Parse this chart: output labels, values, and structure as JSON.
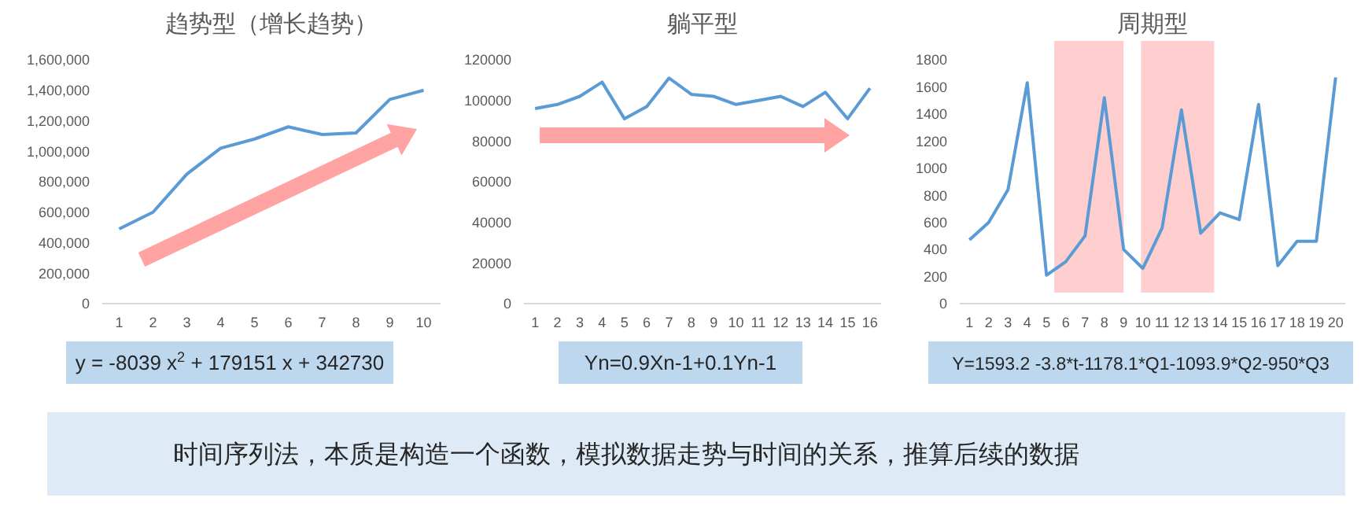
{
  "chart_data": [
    {
      "type": "line",
      "title": "趋势型（增长趋势）",
      "x": [
        1,
        2,
        3,
        4,
        5,
        6,
        7,
        8,
        9,
        10
      ],
      "xlim": [
        0.5,
        10.5
      ],
      "xticks": [
        1,
        2,
        3,
        4,
        5,
        6,
        7,
        8,
        9,
        10
      ],
      "ylim": [
        0,
        1600000
      ],
      "yticks": [
        {
          "value": 0,
          "label": "0"
        },
        {
          "value": 200000,
          "label": "200,000"
        },
        {
          "value": 400000,
          "label": "400,000"
        },
        {
          "value": 600000,
          "label": "600,000"
        },
        {
          "value": 800000,
          "label": "800,000"
        },
        {
          "value": 1000000,
          "label": "1,000,000"
        },
        {
          "value": 1200000,
          "label": "1,200,000"
        },
        {
          "value": 1400000,
          "label": "1,400,000"
        },
        {
          "value": 1600000,
          "label": "1,600,000"
        }
      ],
      "series": [
        {
          "color": "#5b9bd5",
          "values": [
            490000,
            600000,
            850000,
            1020000,
            1080000,
            1160000,
            1110000,
            1120000,
            1340000,
            1400000
          ]
        }
      ],
      "annotations": [
        "y = -8039 x$^{2}$ + 179151 x + 342730"
      ]
    },
    {
      "type": "line",
      "title": "躺平型",
      "x": [
        1,
        2,
        3,
        4,
        5,
        6,
        7,
        8,
        9,
        10,
        11,
        12,
        13,
        14,
        15,
        16
      ],
      "xlim": [
        0.5,
        16.5
      ],
      "xticks": [
        1,
        2,
        3,
        4,
        5,
        6,
        7,
        8,
        9,
        10,
        11,
        12,
        13,
        14,
        15,
        16
      ],
      "ylim": [
        0,
        120000
      ],
      "yticks": [
        0,
        20000,
        40000,
        60000,
        80000,
        100000,
        120000
      ],
      "series": [
        {
          "color": "#5b9bd5",
          "values": [
            96000,
            98000,
            102000,
            109000,
            91000,
            97000,
            111000,
            103000,
            102000,
            98000,
            100000,
            102000,
            97000,
            104000,
            91000,
            106000
          ]
        }
      ],
      "annotations": [
        "Yn=0.9Xn-1+0.1Yn-1"
      ]
    },
    {
      "type": "line",
      "title": "周期型",
      "x": [
        1,
        2,
        3,
        4,
        5,
        6,
        7,
        8,
        9,
        10,
        11,
        12,
        13,
        14,
        15,
        16,
        17,
        18,
        19,
        20
      ],
      "xlim": [
        0.5,
        20.5
      ],
      "xticks": [
        1,
        2,
        3,
        4,
        5,
        6,
        7,
        8,
        9,
        10,
        11,
        12,
        13,
        14,
        15,
        16,
        17,
        18,
        19,
        20
      ],
      "ylim": [
        0,
        1800
      ],
      "yticks": [
        0,
        200,
        400,
        600,
        800,
        1000,
        1200,
        1400,
        1600,
        1800
      ],
      "series": [
        {
          "color": "#5b9bd5",
          "values": [
            470,
            600,
            840,
            1630,
            210,
            310,
            500,
            1520,
            400,
            260,
            560,
            1430,
            520,
            670,
            620,
            1470,
            280,
            460,
            460,
            1670
          ]
        }
      ],
      "bands": [
        {
          "axis": "x",
          "from": 5.4,
          "to": 9.0,
          "color": "#ffc7c7"
        },
        {
          "axis": "x",
          "from": 9.9,
          "to": 13.7,
          "color": "#ffc7c7"
        }
      ],
      "annotations": [
        "Y=1593.2 -3.8*t-1178.1*Q1-1093.9*Q2-950*Q3"
      ]
    },
    {
      "type": "other",
      "annotations": [
        "时间序列法，本质是构造一个函数，模拟数据走势与时间的关系，推算后续的数据"
      ]
    }
  ]
}
